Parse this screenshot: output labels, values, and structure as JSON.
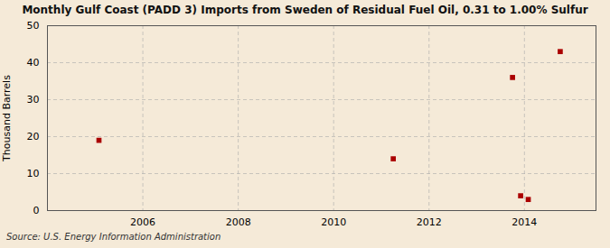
{
  "chart_data": {
    "type": "scatter",
    "title": "Monthly Gulf Coast (PADD 3) Imports from Sweden of Residual Fuel Oil, 0.31 to 1.00% Sulfur",
    "ylabel": "Thousand Barrels",
    "annotation": "Source: U.S. Energy Information Administration",
    "x": [
      2005.08,
      2011.25,
      2013.75,
      2013.92,
      2014.08,
      2014.75
    ],
    "values": [
      19,
      14,
      36,
      4,
      3,
      43
    ],
    "color": "#aa0000",
    "marker": "square",
    "xlim": [
      2004.0,
      2015.5
    ],
    "ylim": [
      0,
      50
    ],
    "xticks": [
      2006,
      2008,
      2010,
      2012,
      2014
    ],
    "yticks": [
      0,
      10,
      20,
      30,
      40,
      50
    ],
    "grid": true
  }
}
